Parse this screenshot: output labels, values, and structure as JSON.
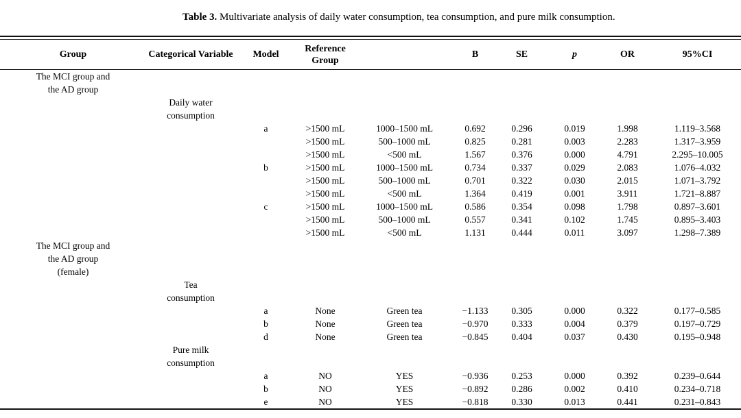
{
  "title": {
    "label": "Table 3.",
    "text": "Multivariate analysis of daily water consumption, tea consumption, and pure milk consumption."
  },
  "table": {
    "headers": [
      "Group",
      "Categorical Variable",
      "Model",
      "Reference Group",
      "",
      "B",
      "SE",
      "p",
      "OR",
      "95%CI"
    ],
    "sections": [
      {
        "group": "The MCI group and\nthe AD group",
        "blocks": [
          {
            "variable": "Daily water\nconsumption",
            "rows": [
              {
                "model": "a",
                "reference": ">1500 mL",
                "comparison": "1000–1500 mL",
                "B": "0.692",
                "SE": "0.296",
                "p": "0.019",
                "OR": "1.998",
                "CI": "1.119–3.568"
              },
              {
                "model": "",
                "reference": ">1500 mL",
                "comparison": "500–1000 mL",
                "B": "0.825",
                "SE": "0.281",
                "p": "0.003",
                "OR": "2.283",
                "CI": "1.317–3.959"
              },
              {
                "model": "",
                "reference": ">1500 mL",
                "comparison": "<500 mL",
                "B": "1.567",
                "SE": "0.376",
                "p": "0.000",
                "OR": "4.791",
                "CI": "2.295–10.005"
              },
              {
                "model": "b",
                "reference": ">1500 mL",
                "comparison": "1000–1500 mL",
                "B": "0.734",
                "SE": "0.337",
                "p": "0.029",
                "OR": "2.083",
                "CI": "1.076–4.032"
              },
              {
                "model": "",
                "reference": ">1500 mL",
                "comparison": "500–1000 mL",
                "B": "0.701",
                "SE": "0.322",
                "p": "0.030",
                "OR": "2.015",
                "CI": "1.071–3.792"
              },
              {
                "model": "",
                "reference": ">1500 mL",
                "comparison": "<500 mL",
                "B": "1.364",
                "SE": "0.419",
                "p": "0.001",
                "OR": "3.911",
                "CI": "1.721–8.887"
              },
              {
                "model": "c",
                "reference": ">1500 mL",
                "comparison": "1000–1500 mL",
                "B": "0.586",
                "SE": "0.354",
                "p": "0.098",
                "OR": "1.798",
                "CI": "0.897–3.601"
              },
              {
                "model": "",
                "reference": ">1500 mL",
                "comparison": "500–1000 mL",
                "B": "0.557",
                "SE": "0.341",
                "p": "0.102",
                "OR": "1.745",
                "CI": "0.895–3.403"
              },
              {
                "model": "",
                "reference": ">1500 mL",
                "comparison": "<500 mL",
                "B": "1.131",
                "SE": "0.444",
                "p": "0.011",
                "OR": "3.097",
                "CI": "1.298–7.389"
              }
            ]
          }
        ]
      },
      {
        "group": "The MCI group and\nthe AD group\n(female)",
        "blocks": [
          {
            "variable": "Tea\nconsumption",
            "rows": [
              {
                "model": "a",
                "reference": "None",
                "comparison": "Green tea",
                "B": "−1.133",
                "SE": "0.305",
                "p": "0.000",
                "OR": "0.322",
                "CI": "0.177–0.585"
              },
              {
                "model": "b",
                "reference": "None",
                "comparison": "Green tea",
                "B": "−0.970",
                "SE": "0.333",
                "p": "0.004",
                "OR": "0.379",
                "CI": "0.197–0.729"
              },
              {
                "model": "d",
                "reference": "None",
                "comparison": "Green tea",
                "B": "−0.845",
                "SE": "0.404",
                "p": "0.037",
                "OR": "0.430",
                "CI": "0.195–0.948"
              }
            ]
          },
          {
            "variable": "Pure milk\nconsumption",
            "rows": [
              {
                "model": "a",
                "reference": "NO",
                "comparison": "YES",
                "B": "−0.936",
                "SE": "0.253",
                "p": "0.000",
                "OR": "0.392",
                "CI": "0.239–0.644"
              },
              {
                "model": "b",
                "reference": "NO",
                "comparison": "YES",
                "B": "−0.892",
                "SE": "0.286",
                "p": "0.002",
                "OR": "0.410",
                "CI": "0.234–0.718"
              },
              {
                "model": "e",
                "reference": "NO",
                "comparison": "YES",
                "B": "−0.818",
                "SE": "0.330",
                "p": "0.013",
                "OR": "0.441",
                "CI": "0.231–0.843"
              }
            ]
          }
        ]
      }
    ]
  }
}
